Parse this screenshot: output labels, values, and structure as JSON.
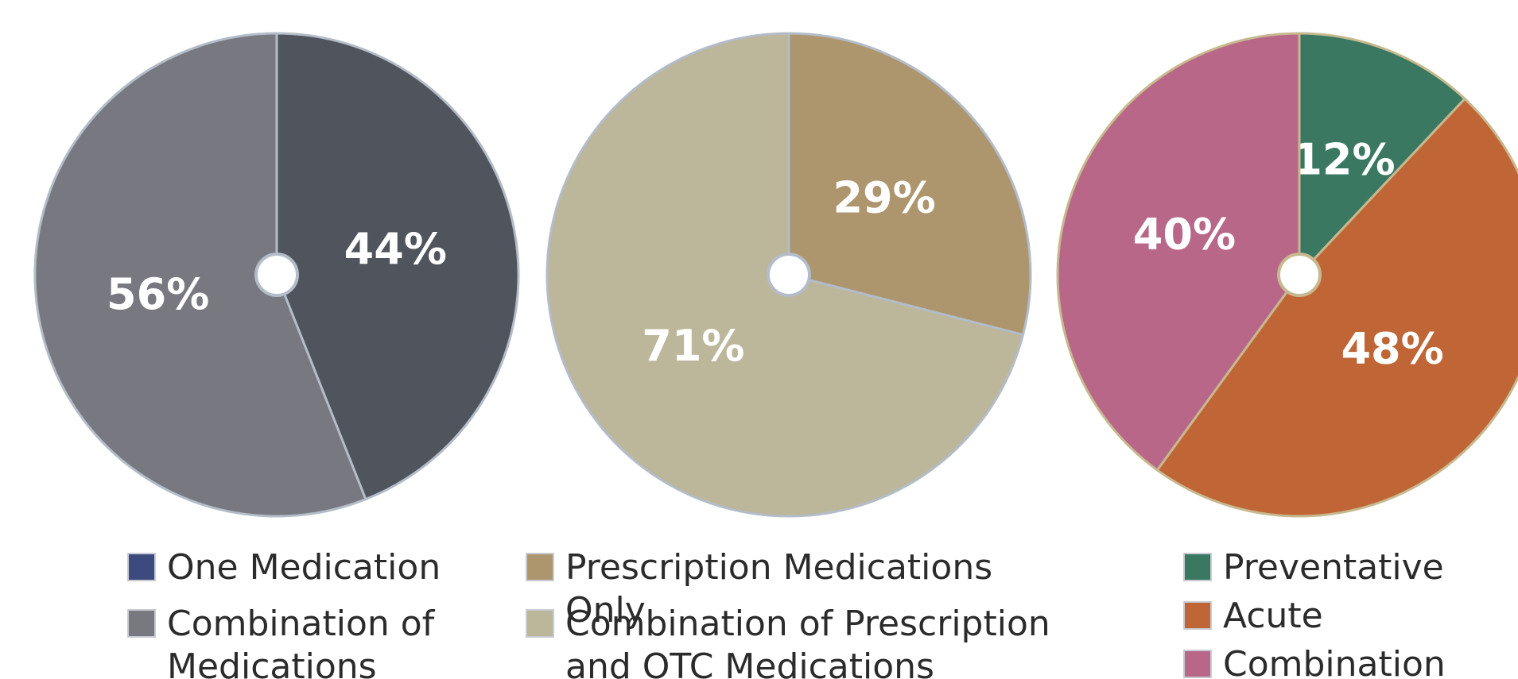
{
  "chart_data": [
    {
      "type": "pie",
      "categories": [
        "One Medication",
        "Combination of Medications"
      ],
      "values": [
        44,
        56
      ],
      "value_labels": [
        "44%",
        "56%"
      ],
      "colors": [
        "#50545c",
        "#777880"
      ],
      "legend_colors": [
        "#3d4a7e",
        "#777880"
      ],
      "edge_color": "#b3bcc8"
    },
    {
      "type": "pie",
      "categories": [
        "Prescription Medications Only",
        "Combination of Prescription and OTC Medications"
      ],
      "values": [
        29,
        71
      ],
      "value_labels": [
        "29%",
        "71%"
      ],
      "colors": [
        "#ad966e",
        "#bcb79a"
      ],
      "edge_color": "#b3bcc8"
    },
    {
      "type": "pie",
      "categories": [
        "Preventative",
        "Acute",
        "Combination"
      ],
      "values": [
        12,
        48,
        40
      ],
      "value_labels": [
        "12%",
        "48%",
        "40%"
      ],
      "colors": [
        "#3a7862",
        "#c06536",
        "#b86789"
      ],
      "edge_color": "#c7b98f"
    }
  ]
}
